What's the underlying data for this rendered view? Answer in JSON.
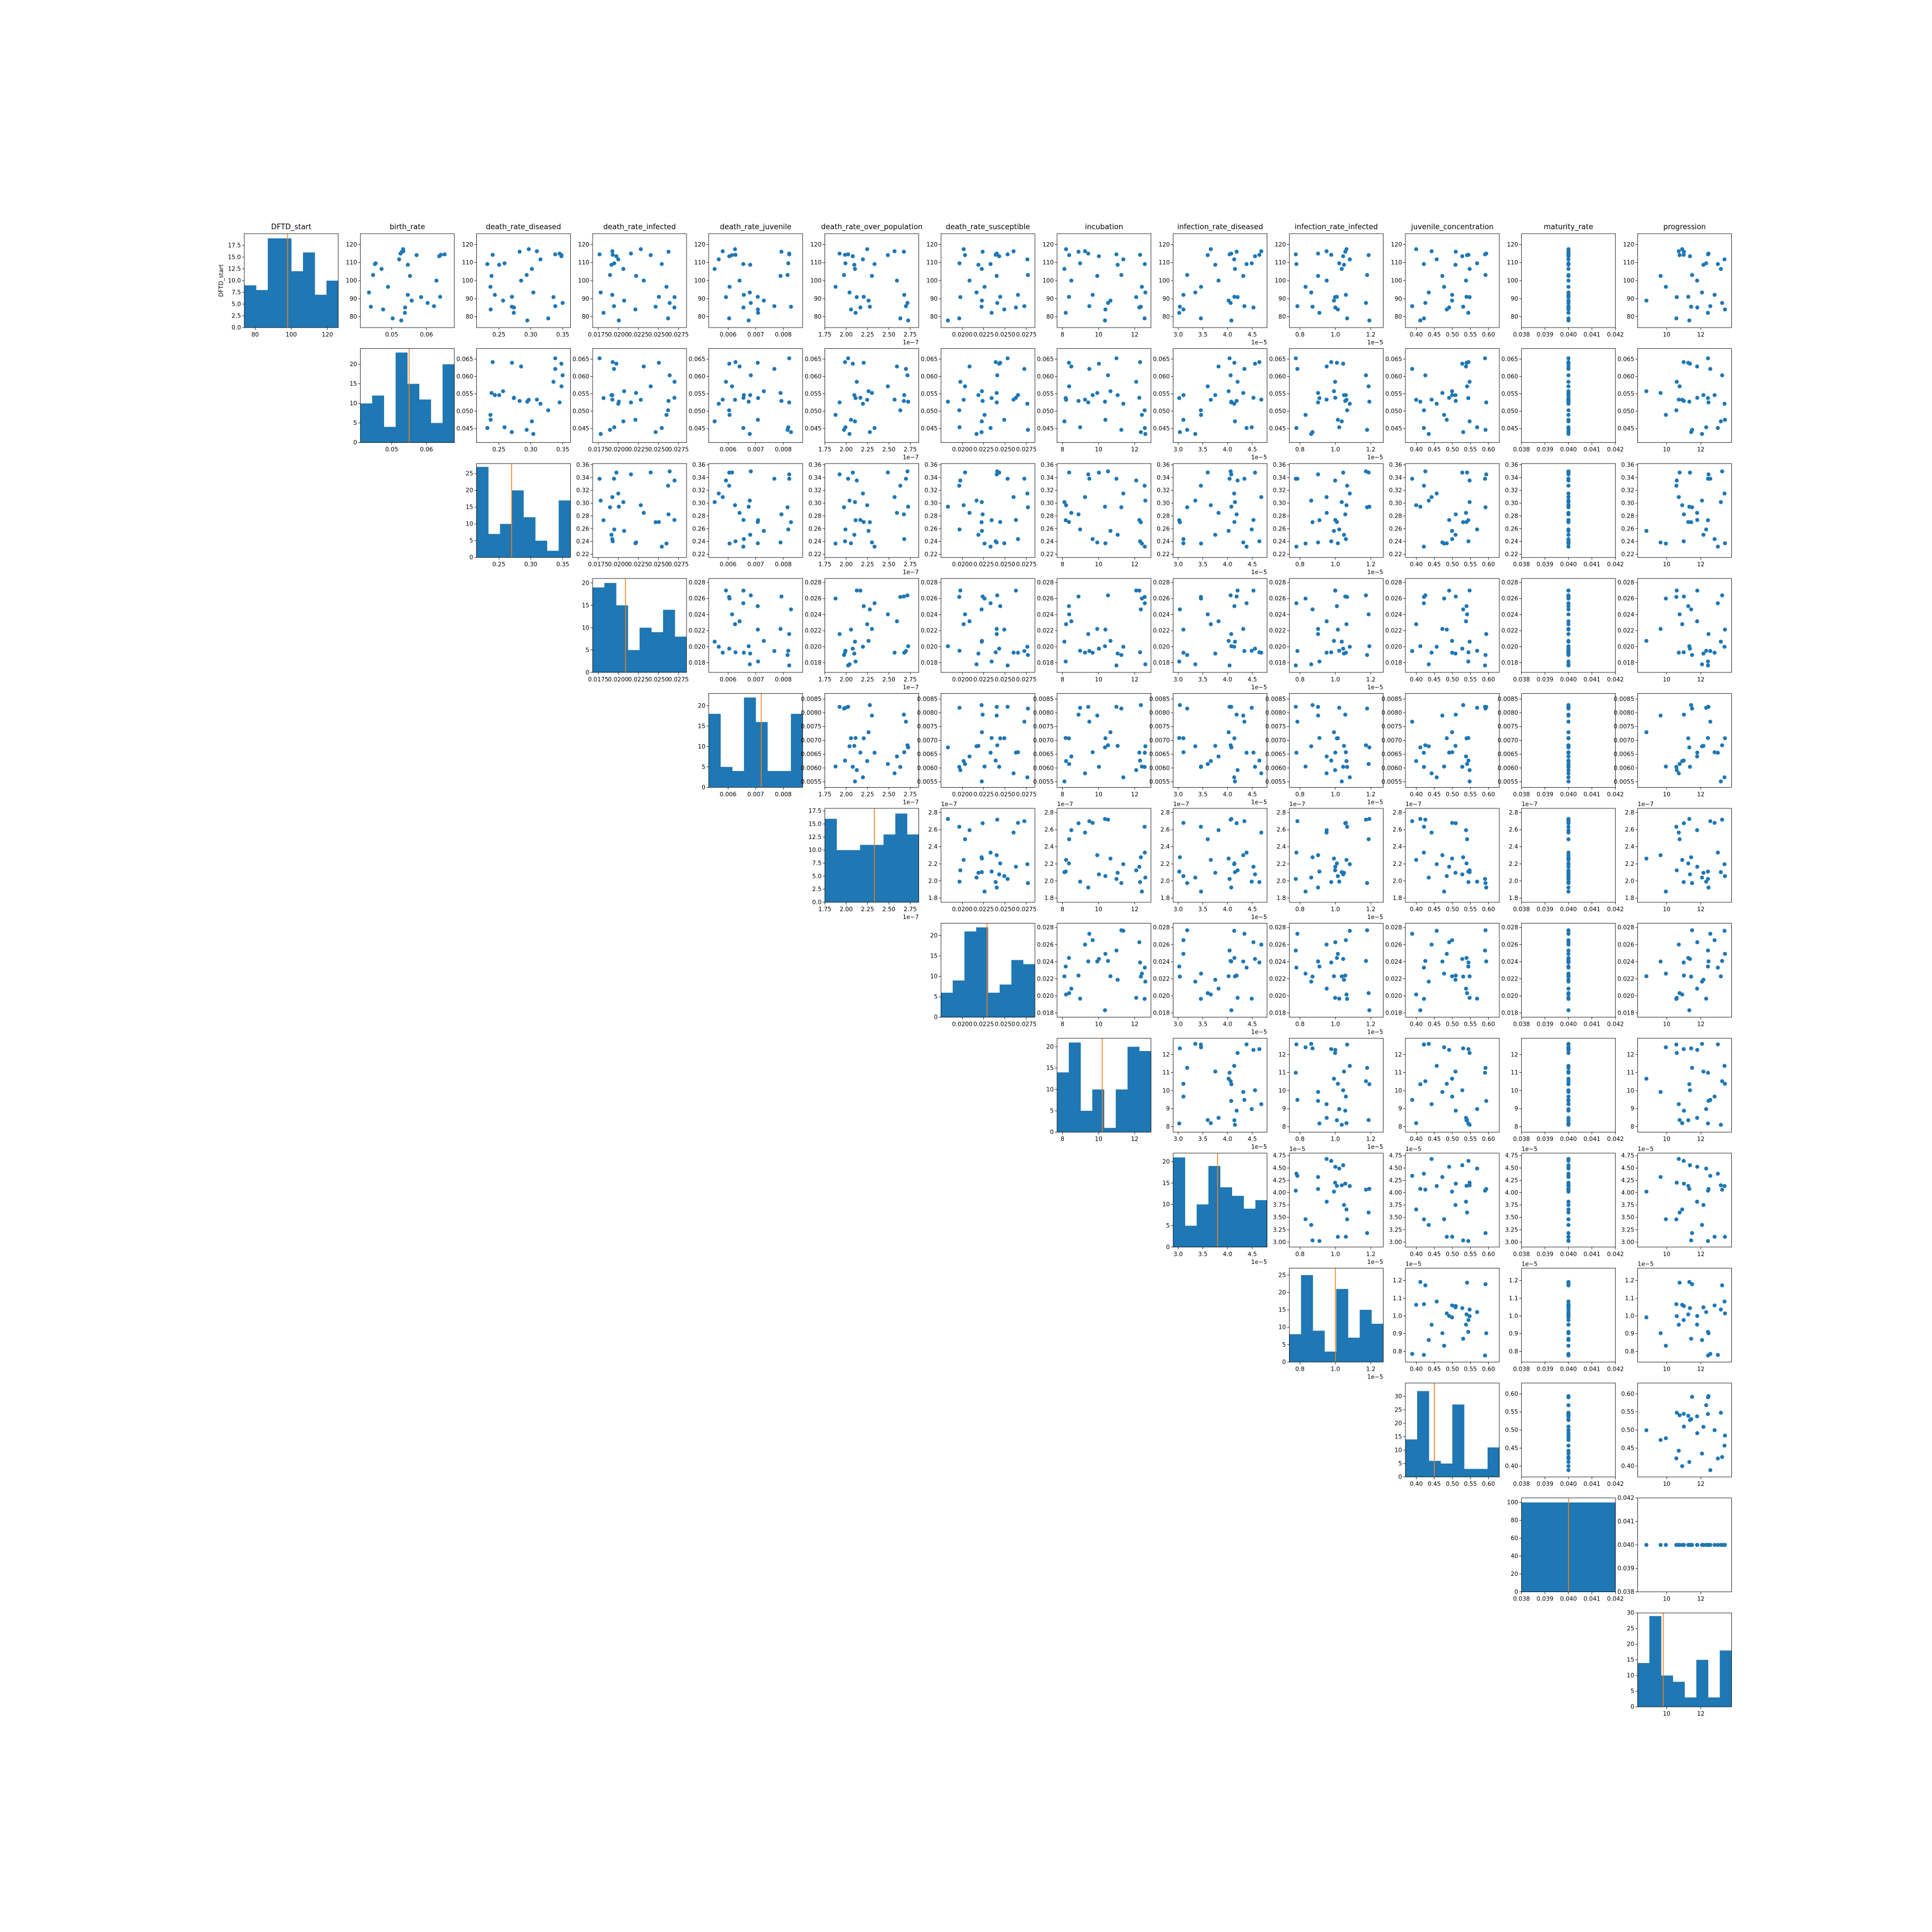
{
  "figure": {
    "row_label": "DFTD_start",
    "colors": {
      "marker": "#1f77b4",
      "bar": "#1f77b4",
      "median_line": "#ff7f0e"
    }
  },
  "chart_data": {
    "type": "scatter",
    "layout": "upper-triangular pair plot (scatter off-diagonal, histogram on diagonal)",
    "variables": [
      {
        "name": "DFTD_start",
        "lim": [
          74,
          126
        ],
        "ticks": [
          80,
          100,
          120
        ],
        "tick_labels": [
          "80",
          "100",
          "120"
        ],
        "offset": "",
        "median": 98,
        "hist_ylim": [
          0,
          20
        ],
        "hist_yticks": [
          0,
          2.5,
          5,
          7.5,
          10,
          12.5,
          15,
          17.5
        ],
        "hist_ytick_labels": [
          "0.0",
          "2.5",
          "5.0",
          "7.5",
          "10.0",
          "12.5",
          "15.0",
          "17.5"
        ],
        "hist_counts": [
          9,
          8,
          19,
          19,
          12,
          16,
          7,
          10
        ],
        "scatter_ticks": [
          80,
          90,
          100,
          110,
          120
        ],
        "scatter_tick_labels": [
          "80",
          "90",
          "100",
          "110",
          "120"
        ]
      },
      {
        "name": "birth_rate",
        "lim": [
          0.041,
          0.068
        ],
        "ticks": [
          0.05,
          0.06
        ],
        "tick_labels": [
          "0.05",
          "0.06"
        ],
        "offset": "",
        "median": 0.055,
        "hist_ylim": [
          0,
          24
        ],
        "hist_yticks": [
          0,
          5,
          10,
          15,
          20
        ],
        "hist_ytick_labels": [
          "0",
          "5",
          "10",
          "15",
          "20"
        ],
        "hist_counts": [
          10,
          12,
          4,
          23,
          15,
          11,
          5,
          20
        ],
        "scatter_ticks": [
          0.045,
          0.05,
          0.055,
          0.06,
          0.065
        ],
        "scatter_tick_labels": [
          "0.045",
          "0.050",
          "0.055",
          "0.060",
          "0.065"
        ]
      },
      {
        "name": "death_rate_diseased",
        "lim": [
          0.215,
          0.362
        ],
        "ticks": [
          0.25,
          0.3,
          0.35
        ],
        "tick_labels": [
          "0.25",
          "0.30",
          "0.35"
        ],
        "offset": "",
        "median": 0.27,
        "hist_ylim": [
          0,
          28
        ],
        "hist_yticks": [
          0,
          5,
          10,
          15,
          20,
          25
        ],
        "hist_ytick_labels": [
          "0",
          "5",
          "10",
          "15",
          "20",
          "25"
        ],
        "hist_counts": [
          27,
          7,
          10,
          20,
          12,
          5,
          2,
          17
        ],
        "scatter_ticks": [
          0.22,
          0.24,
          0.26,
          0.28,
          0.3,
          0.32,
          0.34,
          0.36
        ],
        "scatter_tick_labels": [
          "0.22",
          "0.24",
          "0.26",
          "0.28",
          "0.30",
          "0.32",
          "0.34",
          "0.36"
        ]
      },
      {
        "name": "death_rate_infected",
        "lim": [
          0.0168,
          0.0285
        ],
        "ticks": [
          0.0175,
          0.02,
          0.0225,
          0.025,
          0.0275
        ],
        "tick_labels": [
          "0.0175",
          "0.0200",
          "0.0225",
          "0.0250",
          "0.0275"
        ],
        "offset": "",
        "median": 0.0209,
        "hist_ylim": [
          0,
          21
        ],
        "hist_yticks": [
          0,
          5,
          10,
          15,
          20
        ],
        "hist_ytick_labels": [
          "0",
          "5",
          "10",
          "15",
          "20"
        ],
        "hist_counts": [
          19,
          20,
          15,
          5,
          10,
          9,
          14,
          8
        ],
        "scatter_ticks": [
          0.018,
          0.02,
          0.022,
          0.024,
          0.026,
          0.028
        ],
        "scatter_tick_labels": [
          "0.018",
          "0.020",
          "0.022",
          "0.024",
          "0.026",
          "0.028"
        ]
      },
      {
        "name": "death_rate_juvenile",
        "lim": [
          0.0053,
          0.0087
        ],
        "ticks": [
          0.006,
          0.007,
          0.008
        ],
        "tick_labels": [
          "0.006",
          "0.007",
          "0.008"
        ],
        "offset": "",
        "median": 0.0072,
        "hist_ylim": [
          0,
          23
        ],
        "hist_yticks": [
          0,
          5,
          10,
          15,
          20
        ],
        "hist_ytick_labels": [
          "0",
          "5",
          "10",
          "15",
          "20"
        ],
        "hist_counts": [
          18,
          5,
          4,
          22,
          16,
          4,
          4,
          18
        ],
        "scatter_ticks": [
          0.0055,
          0.006,
          0.0065,
          0.007,
          0.0075,
          0.008,
          0.0085
        ],
        "scatter_tick_labels": [
          "0.0055",
          "0.0060",
          "0.0065",
          "0.0070",
          "0.0075",
          "0.0080",
          "0.0085"
        ]
      },
      {
        "name": "death_rate_over_population",
        "lim": [
          1.75e-07,
          2.85e-07
        ],
        "ticks": [
          1.75e-07,
          2e-07,
          2.25e-07,
          2.5e-07,
          2.75e-07
        ],
        "tick_labels": [
          "1.75",
          "2.00",
          "2.25",
          "2.50",
          "2.75"
        ],
        "offset": "1e−7",
        "median": 2.33e-07,
        "hist_ylim": [
          0,
          18
        ],
        "hist_yticks": [
          0,
          2.5,
          5,
          7.5,
          10,
          12.5,
          15,
          17.5
        ],
        "hist_ytick_labels": [
          "0.0",
          "2.5",
          "5.0",
          "7.5",
          "10.0",
          "12.5",
          "15.0",
          "17.5"
        ],
        "hist_counts": [
          16,
          10,
          10,
          11,
          11,
          13,
          17,
          13
        ],
        "scatter_ticks": [
          1.8e-07,
          2e-07,
          2.2e-07,
          2.4e-07,
          2.6e-07,
          2.8e-07
        ],
        "scatter_tick_labels": [
          "1.8",
          "2.0",
          "2.2",
          "2.4",
          "2.6",
          "2.8"
        ]
      },
      {
        "name": "death_rate_susceptible",
        "lim": [
          0.0175,
          0.0285
        ],
        "ticks": [
          0.02,
          0.0225,
          0.025,
          0.0275
        ],
        "tick_labels": [
          "0.0200",
          "0.0225",
          "0.0250",
          "0.0275"
        ],
        "offset": "",
        "median": 0.0229,
        "hist_ylim": [
          0,
          23
        ],
        "hist_yticks": [
          0,
          5,
          10,
          15,
          20
        ],
        "hist_ytick_labels": [
          "0",
          "5",
          "10",
          "15",
          "20"
        ],
        "hist_counts": [
          6,
          9,
          21,
          22,
          6,
          8,
          14,
          13
        ],
        "scatter_ticks": [
          0.018,
          0.02,
          0.022,
          0.024,
          0.026,
          0.028
        ],
        "scatter_tick_labels": [
          "0.018",
          "0.020",
          "0.022",
          "0.024",
          "0.026",
          "0.028"
        ]
      },
      {
        "name": "incubation",
        "lim": [
          7.7,
          12.9
        ],
        "ticks": [
          8,
          10,
          12
        ],
        "tick_labels": [
          "8",
          "10",
          "12"
        ],
        "offset": "",
        "median": 10.2,
        "hist_ylim": [
          0,
          22
        ],
        "hist_yticks": [
          0,
          5,
          10,
          15,
          20
        ],
        "hist_ytick_labels": [
          "0",
          "5",
          "10",
          "15",
          "20"
        ],
        "hist_counts": [
          14,
          21,
          5,
          10,
          1,
          10,
          20,
          19
        ],
        "scatter_ticks": [
          8,
          9,
          10,
          11,
          12
        ],
        "scatter_tick_labels": [
          "8",
          "9",
          "10",
          "11",
          "12"
        ]
      },
      {
        "name": "infection_rate_diseased",
        "lim": [
          2.9e-05,
          4.8e-05
        ],
        "ticks": [
          3e-05,
          3.5e-05,
          4e-05,
          4.5e-05
        ],
        "tick_labels": [
          "3.0",
          "3.5",
          "4.0",
          "4.5"
        ],
        "offset": "1e−5",
        "median": 3.8e-05,
        "hist_ylim": [
          0,
          22
        ],
        "hist_yticks": [
          0,
          5,
          10,
          15,
          20
        ],
        "hist_ytick_labels": [
          "0",
          "5",
          "10",
          "15",
          "20"
        ],
        "hist_counts": [
          21,
          5,
          10,
          19,
          14,
          12,
          9,
          11
        ],
        "scatter_ticks": [
          3e-05,
          3.25e-05,
          3.5e-05,
          3.75e-05,
          4e-05,
          4.25e-05,
          4.5e-05,
          4.75e-05
        ],
        "scatter_tick_labels": [
          "3.00",
          "3.25",
          "3.50",
          "3.75",
          "4.00",
          "4.25",
          "4.50",
          "4.75"
        ]
      },
      {
        "name": "infection_rate_infected",
        "lim": [
          7.4e-06,
          1.27e-05
        ],
        "ticks": [
          8e-06,
          1e-05,
          1.2e-05
        ],
        "tick_labels": [
          "0.8",
          "1.0",
          "1.2"
        ],
        "offset": "1e−5",
        "median": 1e-05,
        "hist_ylim": [
          0,
          27
        ],
        "hist_yticks": [
          0,
          5,
          10,
          15,
          20,
          25
        ],
        "hist_ytick_labels": [
          "0",
          "5",
          "10",
          "15",
          "20",
          "25"
        ],
        "hist_counts": [
          8,
          25,
          9,
          3,
          21,
          7,
          15,
          11
        ],
        "scatter_ticks": [
          8e-06,
          9e-06,
          1e-05,
          1.1e-05,
          1.2e-05
        ],
        "scatter_tick_labels": [
          "0.8",
          "0.9",
          "1.0",
          "1.1",
          "1.2"
        ]
      },
      {
        "name": "juvenile_concentration",
        "lim": [
          0.37,
          0.63
        ],
        "ticks": [
          0.4,
          0.45,
          0.5,
          0.55,
          0.6
        ],
        "tick_labels": [
          "0.40",
          "0.45",
          "0.50",
          "0.55",
          "0.60"
        ],
        "offset": "",
        "median": 0.45,
        "hist_ylim": [
          0,
          35
        ],
        "hist_yticks": [
          0,
          5,
          10,
          15,
          20,
          25,
          30
        ],
        "hist_ytick_labels": [
          "0",
          "5",
          "10",
          "15",
          "20",
          "25",
          "30"
        ],
        "hist_counts": [
          14,
          32,
          6,
          5,
          27,
          3,
          3,
          11
        ],
        "scatter_ticks": [
          0.4,
          0.45,
          0.5,
          0.55,
          0.6
        ],
        "scatter_tick_labels": [
          "0.40",
          "0.45",
          "0.50",
          "0.55",
          "0.60"
        ]
      },
      {
        "name": "maturity_rate",
        "lim": [
          0.038,
          0.042
        ],
        "ticks": [
          0.038,
          0.039,
          0.04,
          0.041,
          0.042
        ],
        "tick_labels": [
          "0.038",
          "0.039",
          "0.040",
          "0.041",
          "0.042"
        ],
        "offset": "",
        "median": 0.04,
        "hist_ylim": [
          0,
          105
        ],
        "hist_yticks": [
          0,
          20,
          40,
          60,
          80,
          100
        ],
        "hist_ytick_labels": [
          "0",
          "20",
          "40",
          "60",
          "80",
          "100"
        ],
        "hist_counts": [
          100
        ],
        "scatter_ticks": [
          0.038,
          0.039,
          0.04,
          0.041,
          0.042
        ],
        "scatter_tick_labels": [
          "0.038",
          "0.039",
          "0.040",
          "0.041",
          "0.042"
        ]
      },
      {
        "name": "progression",
        "lim": [
          8.3,
          13.8
        ],
        "ticks": [
          10,
          12
        ],
        "tick_labels": [
          "10",
          "12"
        ],
        "offset": "",
        "median": 9.8,
        "hist_ylim": [
          0,
          30
        ],
        "hist_yticks": [
          0,
          5,
          10,
          15,
          20,
          25,
          30
        ],
        "hist_ytick_labels": [
          "0",
          "5",
          "10",
          "15",
          "20",
          "25",
          "30"
        ],
        "hist_counts": [
          14,
          29,
          10,
          8,
          3,
          15,
          3,
          18
        ],
        "scatter_ticks": [
          10,
          12
        ],
        "scatter_tick_labels": [
          "10",
          "12"
        ]
      }
    ],
    "n_points": 30
  }
}
